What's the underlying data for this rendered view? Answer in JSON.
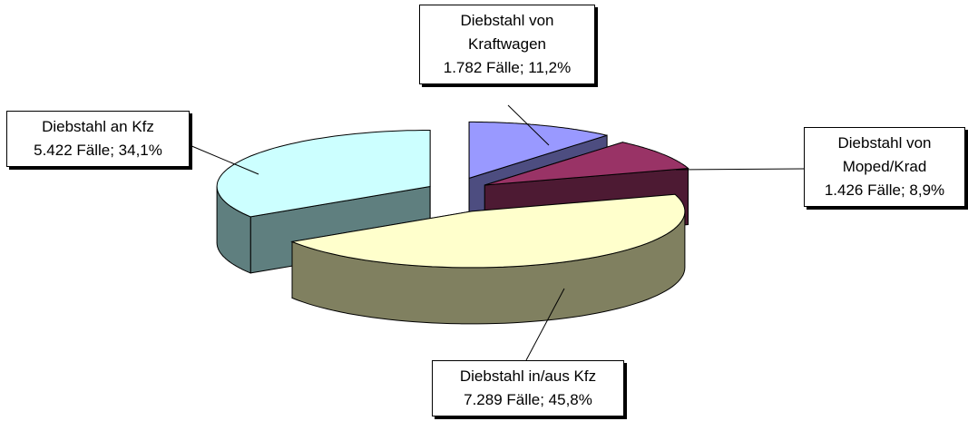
{
  "chart_data": {
    "type": "pie3d",
    "categories": [
      "Diebstahl von Kraftwagen",
      "Diebstahl von Moped/Krad",
      "Diebstahl in/aus Kfz",
      "Diebstahl an Kfz"
    ],
    "values": [
      1782,
      1426,
      7289,
      5422
    ],
    "value_labels": [
      "1.782 Fälle; 11,2%",
      "1.426 Fälle; 8,9%",
      "7.289 Fälle; 45,8%",
      "5.422 Fälle; 34,1%"
    ],
    "colors": [
      "#9999ff",
      "#993366",
      "#ffffcc",
      "#ccffff"
    ],
    "side_colors": [
      "#4d4d80",
      "#4d1a33",
      "#808060",
      "#5f7f7f"
    ]
  }
}
